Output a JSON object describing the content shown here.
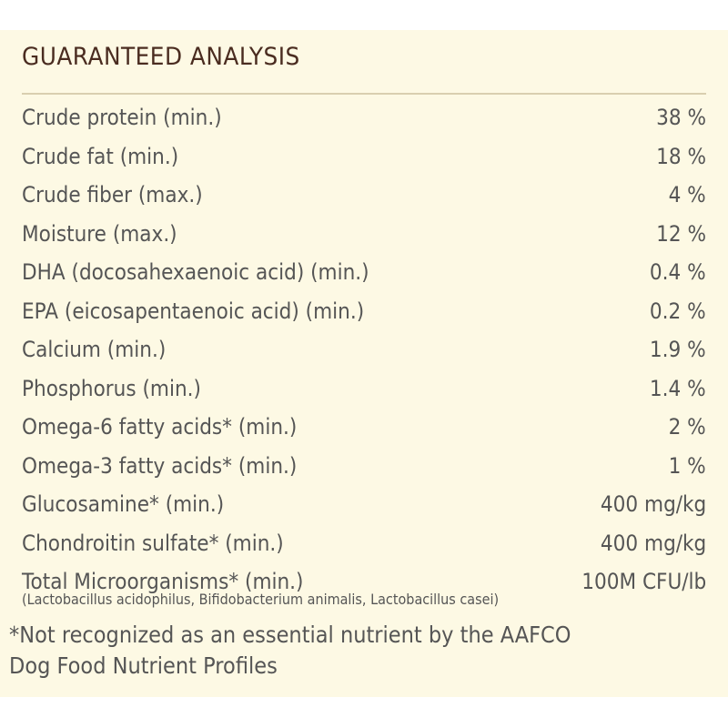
{
  "title": "GUARANTEED ANALYSIS",
  "rows": [
    {
      "label": "Crude protein (min.)",
      "value": "38 %"
    },
    {
      "label": "Crude fat (min.)",
      "value": "18 %"
    },
    {
      "label": "Crude fiber (max.)",
      "value": "4 %"
    },
    {
      "label": "Moisture (max.)",
      "value": "12 %"
    },
    {
      "label": "DHA (docosahexaenoic acid) (min.)",
      "value": "0.4 %"
    },
    {
      "label": "EPA (eicosapentaenoic acid) (min.)",
      "value": "0.2 %"
    },
    {
      "label": "Calcium (min.)",
      "value": "1.9 %"
    },
    {
      "label": "Phosphorus (min.)",
      "value": "1.4 %"
    },
    {
      "label": "Omega-6 fatty acids* (min.)",
      "value": "2 %"
    },
    {
      "label": "Omega-3 fatty acids* (min.)",
      "value": "1 %"
    },
    {
      "label": "Glucosamine* (min.)",
      "value": "400 mg/kg"
    },
    {
      "label": "Chondroitin sulfate* (min.)",
      "value": "400 mg/kg"
    },
    {
      "label": "Total Microorganisms* (min.)",
      "value": "100M CFU/lb"
    }
  ],
  "microorganisms_note": "(Lactobacillus acidophilus, Bifidobacterium animalis, Lactobacillus casei)",
  "footnote": {
    "line1": "*Not recognized as an essential nutrient by the AAFCO",
    "line2": "Dog Food Nutrient Profiles"
  },
  "colors": {
    "panel_background": "#fdf9e4",
    "title": "#4a2c20",
    "text": "#555555",
    "rule": "#d9cfb0"
  }
}
